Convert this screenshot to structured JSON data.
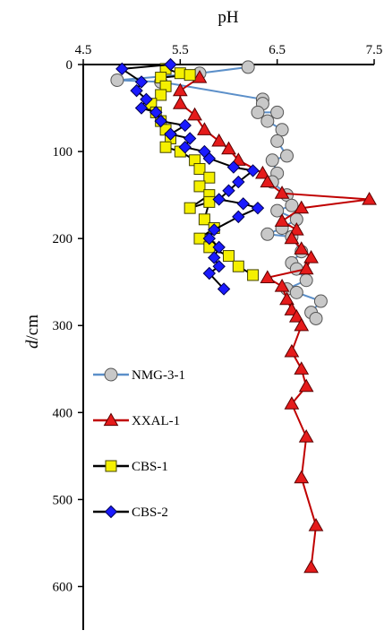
{
  "chart_data": {
    "type": "scatter",
    "xlabel": "pH",
    "ylabel_italic": "d",
    "ylabel_unit": "/cm",
    "xlim": [
      4.5,
      7.5
    ],
    "ylim": [
      0,
      650
    ],
    "x_axis_position": "top",
    "y_reversed": true,
    "x_ticks": [
      4.5,
      5.5,
      6.5,
      7.5
    ],
    "x_tick_labels": [
      "4.5",
      "5.5",
      "6.5",
      "7.5"
    ],
    "y_ticks": [
      0,
      100,
      200,
      300,
      400,
      500,
      600
    ],
    "y_tick_labels": [
      "0",
      "100",
      "200",
      "300",
      "400",
      "500",
      "600"
    ],
    "grid": false,
    "legend_position": "left-middle",
    "series": [
      {
        "name": "NMG-3-1",
        "marker": "circle",
        "line_color": "#5b8fc9",
        "marker_fill": "#c8c8c8",
        "marker_stroke": "#555555",
        "points": [
          [
            6.2,
            3
          ],
          [
            5.7,
            10
          ],
          [
            4.85,
            18
          ],
          [
            5.3,
            20
          ],
          [
            6.35,
            40
          ],
          [
            6.35,
            45
          ],
          [
            6.3,
            55
          ],
          [
            6.5,
            55
          ],
          [
            6.4,
            65
          ],
          [
            6.55,
            75
          ],
          [
            6.5,
            88
          ],
          [
            6.6,
            105
          ],
          [
            6.45,
            110
          ],
          [
            6.5,
            125
          ],
          [
            6.45,
            135
          ],
          [
            6.6,
            150
          ],
          [
            6.65,
            162
          ],
          [
            6.5,
            168
          ],
          [
            6.7,
            178
          ],
          [
            6.55,
            188
          ],
          [
            6.4,
            195
          ],
          [
            6.65,
            198
          ],
          [
            6.75,
            215
          ],
          [
            6.65,
            228
          ],
          [
            6.7,
            235
          ],
          [
            6.8,
            248
          ],
          [
            6.6,
            258
          ],
          [
            6.7,
            262
          ],
          [
            6.95,
            272
          ],
          [
            6.85,
            285
          ],
          [
            6.9,
            292
          ]
        ]
      },
      {
        "name": "XXAL-1",
        "marker": "triangle",
        "line_color": "#c00000",
        "marker_fill": "#e51b1b",
        "marker_stroke": "#5a0000",
        "points": [
          [
            5.7,
            15
          ],
          [
            5.5,
            30
          ],
          [
            5.5,
            45
          ],
          [
            5.65,
            58
          ],
          [
            5.75,
            75
          ],
          [
            5.9,
            88
          ],
          [
            6.0,
            97
          ],
          [
            6.1,
            110
          ],
          [
            6.35,
            125
          ],
          [
            6.4,
            135
          ],
          [
            6.55,
            148
          ],
          [
            7.45,
            155
          ],
          [
            6.75,
            165
          ],
          [
            6.55,
            180
          ],
          [
            6.7,
            190
          ],
          [
            6.65,
            200
          ],
          [
            6.75,
            212
          ],
          [
            6.85,
            222
          ],
          [
            6.8,
            235
          ],
          [
            6.4,
            245
          ],
          [
            6.55,
            255
          ],
          [
            6.6,
            270
          ],
          [
            6.65,
            282
          ],
          [
            6.7,
            290
          ],
          [
            6.75,
            300
          ],
          [
            6.65,
            330
          ],
          [
            6.75,
            350
          ],
          [
            6.8,
            370
          ],
          [
            6.65,
            390
          ],
          [
            6.8,
            428
          ],
          [
            6.75,
            475
          ],
          [
            6.9,
            530
          ],
          [
            6.85,
            578
          ]
        ]
      },
      {
        "name": "CBS-1",
        "marker": "square",
        "line_color": "#000000",
        "marker_fill": "#f5f000",
        "marker_stroke": "#444400",
        "points": [
          [
            5.35,
            5
          ],
          [
            5.5,
            10
          ],
          [
            5.6,
            12
          ],
          [
            5.3,
            15
          ],
          [
            5.35,
            25
          ],
          [
            5.3,
            35
          ],
          [
            5.2,
            45
          ],
          [
            5.25,
            55
          ],
          [
            5.3,
            65
          ],
          [
            5.35,
            75
          ],
          [
            5.4,
            85
          ],
          [
            5.35,
            95
          ],
          [
            5.5,
            100
          ],
          [
            5.65,
            110
          ],
          [
            5.7,
            120
          ],
          [
            5.8,
            130
          ],
          [
            5.7,
            140
          ],
          [
            5.8,
            150
          ],
          [
            5.6,
            165
          ],
          [
            5.8,
            158
          ],
          [
            5.75,
            178
          ],
          [
            5.85,
            188
          ],
          [
            5.7,
            200
          ],
          [
            5.8,
            210
          ],
          [
            6.0,
            220
          ],
          [
            6.1,
            232
          ],
          [
            6.25,
            242
          ]
        ]
      },
      {
        "name": "CBS-2",
        "marker": "diamond",
        "line_color": "#000000",
        "marker_fill": "#1a1aff",
        "marker_stroke": "#000050",
        "points": [
          [
            5.4,
            0
          ],
          [
            4.9,
            5
          ],
          [
            5.1,
            20
          ],
          [
            5.05,
            30
          ],
          [
            5.15,
            40
          ],
          [
            5.1,
            50
          ],
          [
            5.25,
            55
          ],
          [
            5.3,
            65
          ],
          [
            5.55,
            70
          ],
          [
            5.4,
            80
          ],
          [
            5.6,
            85
          ],
          [
            5.55,
            95
          ],
          [
            5.75,
            100
          ],
          [
            5.8,
            108
          ],
          [
            6.05,
            118
          ],
          [
            6.25,
            122
          ],
          [
            6.1,
            135
          ],
          [
            6.0,
            145
          ],
          [
            5.9,
            155
          ],
          [
            6.15,
            160
          ],
          [
            6.3,
            165
          ],
          [
            6.1,
            175
          ],
          [
            5.85,
            190
          ],
          [
            5.8,
            200
          ],
          [
            5.9,
            210
          ],
          [
            5.85,
            222
          ],
          [
            5.9,
            232
          ],
          [
            5.8,
            240
          ],
          [
            5.95,
            258
          ]
        ]
      }
    ]
  }
}
